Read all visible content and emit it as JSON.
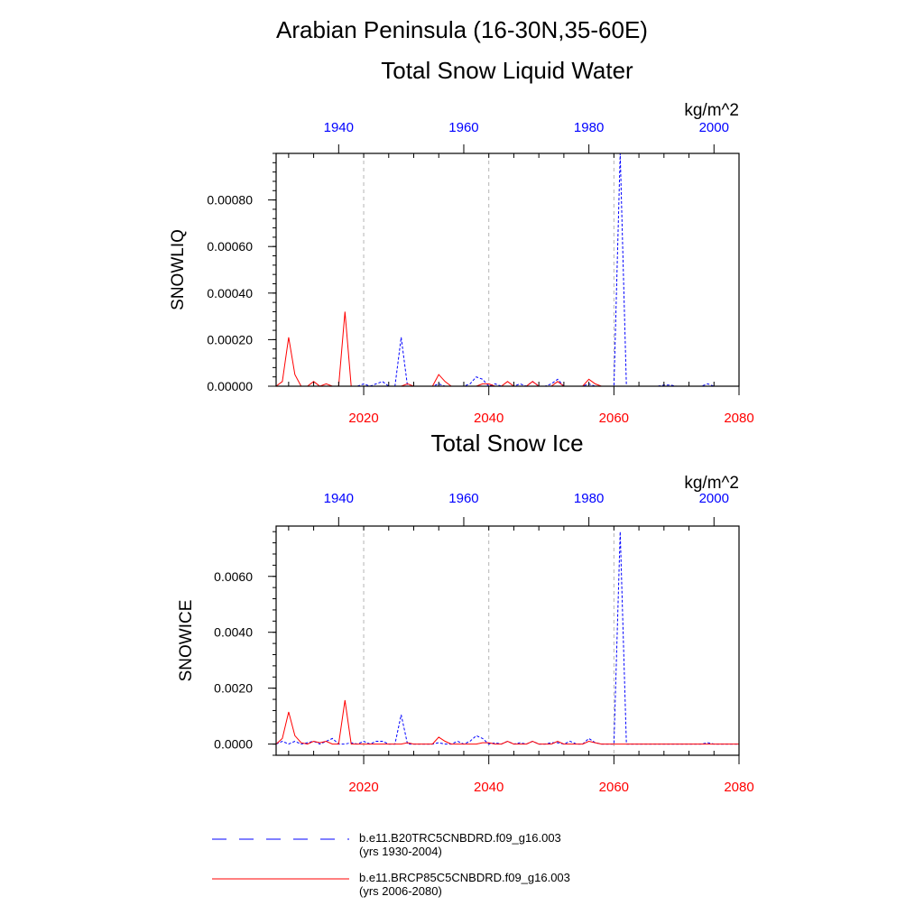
{
  "title": "Arabian Peninsula (16-30N,35-60E)",
  "colors": {
    "historical": "#0000ff",
    "future": "#ff0000",
    "grid": "#b4b4b4",
    "axis": "#000000"
  },
  "legend": [
    {
      "label": "b.e11.B20TRC5CNBDRD.f09_g16.003 (yrs 1930-2004)",
      "style": "dashed",
      "color": "#0000ff"
    },
    {
      "label": "b.e11.BRCP85C5CNBDRD.f09_g16.003 (yrs 2006-2080)",
      "style": "solid",
      "color": "#ff0000"
    }
  ],
  "chart_data": [
    {
      "type": "line",
      "title": "Total Snow Liquid Water",
      "units": "kg/m^2",
      "ylabel": "SNOWLIQ",
      "ylim": [
        0,
        0.001
      ],
      "yticks": [
        0,
        0.0002,
        0.0004,
        0.0006,
        0.0008
      ],
      "ytick_labels": [
        "0.00000",
        "0.00020",
        "0.00040",
        "0.00060",
        "0.00080"
      ],
      "bottom_axis": {
        "range": [
          2006,
          2080
        ],
        "ticks": [
          2020,
          2040,
          2060,
          2080
        ],
        "color": "#ff0000"
      },
      "top_axis": {
        "range": [
          1930,
          2004
        ],
        "ticks": [
          1940,
          1960,
          1980,
          2000
        ],
        "color": "#0000ff"
      },
      "series": [
        {
          "name": "b.e11.B20TRC5CNBDRD.f09_g16.003 (yrs 1930-2004)",
          "axis": "top",
          "style": "dashed",
          "x": [
            1930,
            1931,
            1932,
            1933,
            1934,
            1935,
            1936,
            1937,
            1938,
            1939,
            1940,
            1941,
            1942,
            1943,
            1944,
            1945,
            1946,
            1947,
            1948,
            1949,
            1950,
            1951,
            1952,
            1953,
            1954,
            1955,
            1956,
            1957,
            1958,
            1959,
            1960,
            1961,
            1962,
            1963,
            1964,
            1965,
            1966,
            1967,
            1968,
            1969,
            1970,
            1971,
            1972,
            1973,
            1974,
            1975,
            1976,
            1977,
            1978,
            1979,
            1980,
            1981,
            1982,
            1983,
            1984,
            1985,
            1986,
            1987,
            1988,
            1989,
            1990,
            1991,
            1992,
            1993,
            1994,
            1995,
            1996,
            1997,
            1998,
            1999,
            2000,
            2001,
            2002,
            2003,
            2004
          ],
          "values": [
            0,
            0,
            0,
            0,
            0,
            0,
            0,
            0,
            0,
            0,
            0,
            0,
            0,
            0,
            1e-05,
            0,
            1e-05,
            2e-05,
            0,
            0,
            0.00021,
            0,
            0,
            0,
            0,
            0,
            1e-05,
            0,
            0,
            0,
            0,
            1e-05,
            4e-05,
            3e-05,
            0,
            1e-05,
            0,
            0,
            0,
            1e-05,
            0,
            2e-05,
            0,
            0,
            1e-05,
            3e-05,
            0,
            0,
            0,
            0,
            1e-05,
            0,
            0,
            0,
            0,
            0.001,
            0,
            0,
            0,
            0,
            0,
            0,
            5e-06,
            5e-06,
            0,
            0,
            0,
            0,
            0,
            1e-05,
            0,
            0,
            0,
            0,
            0
          ]
        },
        {
          "name": "b.e11.BRCP85C5CNBDRD.f09_g16.003 (yrs 2006-2080)",
          "axis": "bottom",
          "style": "solid",
          "x": [
            2006,
            2007,
            2008,
            2009,
            2010,
            2011,
            2012,
            2013,
            2014,
            2015,
            2016,
            2017,
            2018,
            2019,
            2020,
            2021,
            2022,
            2023,
            2024,
            2025,
            2026,
            2027,
            2028,
            2029,
            2030,
            2031,
            2032,
            2033,
            2034,
            2035,
            2036,
            2037,
            2038,
            2039,
            2040,
            2041,
            2042,
            2043,
            2044,
            2045,
            2046,
            2047,
            2048,
            2049,
            2050,
            2051,
            2052,
            2053,
            2054,
            2055,
            2056,
            2057,
            2058,
            2059,
            2060,
            2061,
            2062,
            2063,
            2064,
            2065,
            2066,
            2067,
            2068,
            2069,
            2070,
            2071,
            2072,
            2073,
            2074,
            2075,
            2076,
            2077,
            2078,
            2079,
            2080
          ],
          "values": [
            0,
            2e-05,
            0.00021,
            5e-05,
            0,
            0,
            2e-05,
            0,
            1e-05,
            0,
            0,
            0.00032,
            0,
            0,
            0,
            0,
            0,
            0,
            0,
            0,
            0,
            1e-05,
            0,
            0,
            0,
            0,
            5e-05,
            2e-05,
            0,
            0,
            0,
            0,
            0,
            1e-05,
            1e-05,
            0,
            0,
            2e-05,
            0,
            0,
            0,
            2e-05,
            0,
            0,
            0,
            2e-05,
            0,
            0,
            0,
            0,
            3e-05,
            1e-05,
            0,
            0,
            0,
            0,
            0,
            0,
            0,
            0,
            0,
            0,
            0,
            0,
            0,
            0,
            0,
            0,
            0,
            0,
            0,
            0,
            0,
            0,
            0
          ]
        }
      ]
    },
    {
      "type": "line",
      "title": "Total Snow Ice",
      "units": "kg/m^2",
      "ylabel": "SNOWICE",
      "ylim": [
        -0.0004,
        0.0078
      ],
      "yticks": [
        0,
        0.002,
        0.004,
        0.006
      ],
      "ytick_labels": [
        "0.0000",
        "0.0020",
        "0.0040",
        "0.0060"
      ],
      "bottom_axis": {
        "range": [
          2006,
          2080
        ],
        "ticks": [
          2020,
          2040,
          2060,
          2080
        ],
        "color": "#ff0000"
      },
      "top_axis": {
        "range": [
          1930,
          2004
        ],
        "ticks": [
          1940,
          1960,
          1980,
          2000
        ],
        "color": "#0000ff"
      },
      "series": [
        {
          "name": "b.e11.B20TRC5CNBDRD.f09_g16.003 (yrs 1930-2004)",
          "axis": "top",
          "style": "dashed",
          "x": [
            1930,
            1931,
            1932,
            1933,
            1934,
            1935,
            1936,
            1937,
            1938,
            1939,
            1940,
            1941,
            1942,
            1943,
            1944,
            1945,
            1946,
            1947,
            1948,
            1949,
            1950,
            1951,
            1952,
            1953,
            1954,
            1955,
            1956,
            1957,
            1958,
            1959,
            1960,
            1961,
            1962,
            1963,
            1964,
            1965,
            1966,
            1967,
            1968,
            1969,
            1970,
            1971,
            1972,
            1973,
            1974,
            1975,
            1976,
            1977,
            1978,
            1979,
            1980,
            1981,
            1982,
            1983,
            1984,
            1985,
            1986,
            1987,
            1988,
            1989,
            1990,
            1991,
            1992,
            1993,
            1994,
            1995,
            1996,
            1997,
            1998,
            1999,
            2000,
            2001,
            2002,
            2003,
            2004
          ],
          "values": [
            0,
            0.0001,
            0,
            0.0001,
            0,
            5e-05,
            0.0001,
            0,
            0.0001,
            0.0002,
            0,
            0,
            5e-05,
            0,
            0.0001,
            0,
            0.0001,
            0.0001,
            0,
            0,
            0.00105,
            0,
            0,
            0,
            0,
            0,
            5e-05,
            0,
            0,
            0.0001,
            0,
            0.0001,
            0.0003,
            0.0002,
            0,
            5e-05,
            0,
            0.0001,
            0,
            5e-05,
            0,
            0.0001,
            0,
            0,
            5e-05,
            5e-05,
            0,
            0.0001,
            0,
            0,
            0.0002,
            5e-05,
            0,
            0,
            0,
            0.0076,
            0,
            0,
            0,
            0,
            0,
            0,
            0,
            0,
            0,
            0,
            0,
            0,
            0,
            5e-05,
            0,
            0,
            0,
            0,
            0
          ]
        },
        {
          "name": "b.e11.BRCP85C5CNBDRD.f09_g16.003 (yrs 2006-2080)",
          "axis": "bottom",
          "style": "solid",
          "x": [
            2006,
            2007,
            2008,
            2009,
            2010,
            2011,
            2012,
            2013,
            2014,
            2015,
            2016,
            2017,
            2018,
            2019,
            2020,
            2021,
            2022,
            2023,
            2024,
            2025,
            2026,
            2027,
            2028,
            2029,
            2030,
            2031,
            2032,
            2033,
            2034,
            2035,
            2036,
            2037,
            2038,
            2039,
            2040,
            2041,
            2042,
            2043,
            2044,
            2045,
            2046,
            2047,
            2048,
            2049,
            2050,
            2051,
            2052,
            2053,
            2054,
            2055,
            2056,
            2057,
            2058,
            2059,
            2060,
            2061,
            2062,
            2063,
            2064,
            2065,
            2066,
            2067,
            2068,
            2069,
            2070,
            2071,
            2072,
            2073,
            2074,
            2075,
            2076,
            2077,
            2078,
            2079,
            2080
          ],
          "values": [
            0,
            0.0002,
            0.00115,
            0.0003,
            5e-05,
            0,
            0.0001,
            5e-05,
            0.0001,
            0,
            0,
            0.00157,
            0,
            0,
            0,
            0,
            0,
            0,
            0,
            0,
            0,
            5e-05,
            0,
            0,
            0,
            0,
            0.00025,
            0.0001,
            0,
            0,
            0,
            0,
            0,
            5e-05,
            5e-05,
            0,
            0,
            0.0001,
            0,
            0,
            0,
            0.0001,
            0,
            0,
            0,
            0.0001,
            0,
            0,
            0,
            0,
            0.0001,
            5e-05,
            0,
            0,
            0,
            0,
            0,
            0,
            0,
            0,
            0,
            0,
            0,
            0,
            0,
            0,
            0,
            0,
            0,
            0,
            0,
            0,
            0,
            0,
            0
          ]
        }
      ]
    }
  ]
}
